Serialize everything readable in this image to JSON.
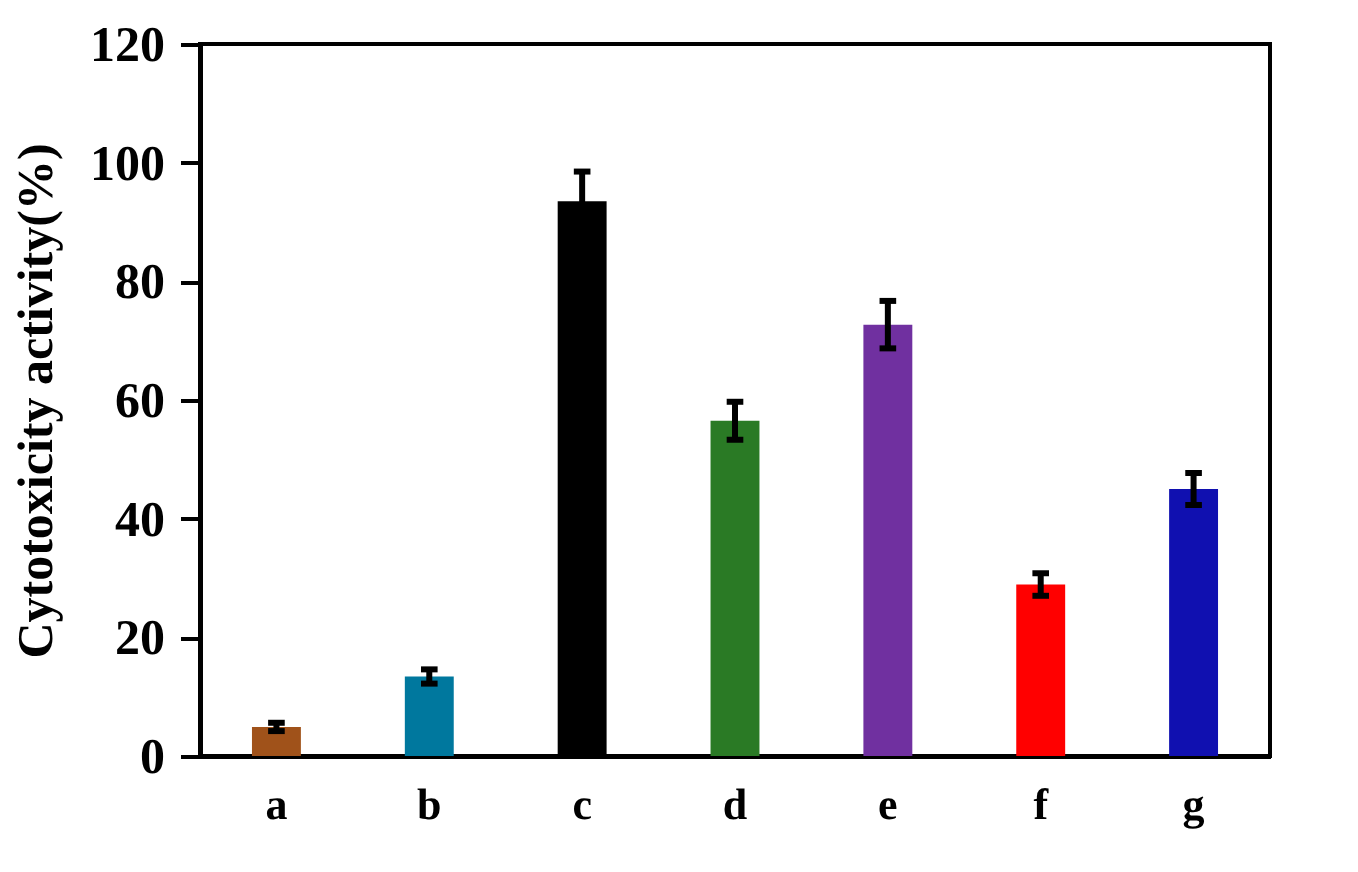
{
  "chart_data": {
    "type": "bar",
    "ylabel": "Cytotoxicity activity(%)",
    "categories": [
      "a",
      "b",
      "c",
      "d",
      "e",
      "f",
      "g"
    ],
    "values": [
      4.9,
      13.4,
      93.5,
      56.5,
      72.7,
      28.9,
      45.0
    ],
    "errors": [
      0.7,
      1.2,
      5,
      3.2,
      4,
      1.9,
      2.7
    ],
    "colors": [
      "#a0521a",
      "#00789e",
      "#000000",
      "#2a7a25",
      "#7030a0",
      "#ff0000",
      "#1010b0"
    ],
    "ylim": [
      0,
      120
    ],
    "yticks": [
      0,
      20,
      40,
      60,
      80,
      100,
      120
    ],
    "grid": false
  }
}
